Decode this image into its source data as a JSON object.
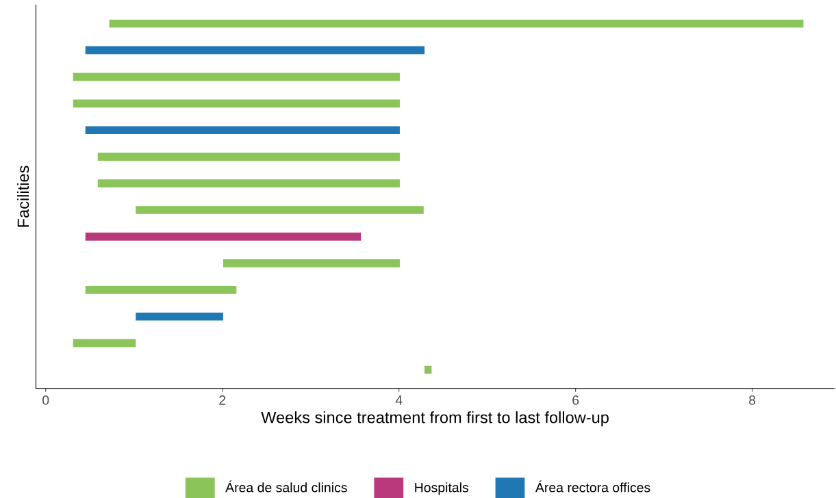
{
  "chart_data": {
    "type": "bar",
    "orientation": "horizontal",
    "xlabel": "Weeks since treatment from first to last follow-up",
    "ylabel": "Facilities",
    "categories": [
      null,
      null,
      null,
      null,
      null,
      null,
      null,
      null,
      null,
      null,
      null,
      null,
      null,
      null
    ],
    "series": [
      {
        "name": "Área de salud clinics",
        "color": "#8bc55a",
        "base": [
          0.72,
          null,
          0.31,
          0.31,
          null,
          0.59,
          0.59,
          1.02,
          null,
          2.01,
          0.45,
          null,
          0.31,
          4.29
        ],
        "values": [
          7.86,
          null,
          3.7,
          3.7,
          null,
          3.42,
          3.42,
          3.26,
          null,
          2.0,
          1.71,
          null,
          0.71,
          0.08
        ]
      },
      {
        "name": "Hospitals",
        "color": "#b83a7c",
        "base": [
          null,
          null,
          null,
          null,
          null,
          null,
          null,
          null,
          0.45,
          null,
          null,
          null,
          null,
          null
        ],
        "values": [
          null,
          null,
          null,
          null,
          null,
          null,
          null,
          null,
          3.12,
          null,
          null,
          null,
          null,
          null
        ]
      },
      {
        "name": "Área rectora offices",
        "color": "#1f78b4",
        "base": [
          null,
          0.45,
          null,
          null,
          0.45,
          null,
          null,
          null,
          null,
          null,
          null,
          1.02,
          null,
          null
        ],
        "values": [
          null,
          3.84,
          null,
          null,
          3.56,
          null,
          null,
          null,
          null,
          null,
          null,
          0.99,
          null,
          null
        ]
      }
    ],
    "xlim": [
      -0.11,
      8.93
    ],
    "xticks": [
      0,
      2,
      4,
      6,
      8
    ],
    "marker": "none",
    "legend": "bottom",
    "grid": false,
    "tick_labels": "x"
  }
}
